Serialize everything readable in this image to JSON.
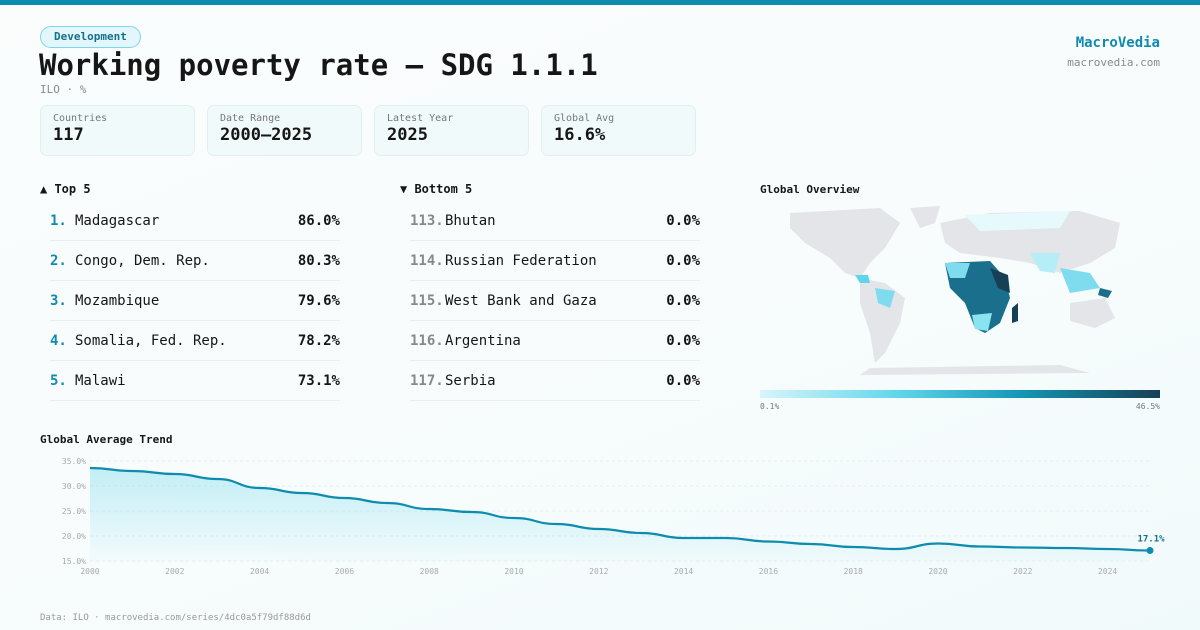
{
  "tag": "Development",
  "title": "Working poverty rate — SDG 1.1.1",
  "subtitle": "ILO · %",
  "brand": {
    "name": "MacroVedia",
    "url": "macrovedia.com"
  },
  "stats": [
    {
      "label": "Countries",
      "value": "117"
    },
    {
      "label": "Date Range",
      "value": "2000–2025"
    },
    {
      "label": "Latest Year",
      "value": "2025"
    },
    {
      "label": "Global Avg",
      "value": "16.6%"
    }
  ],
  "top": {
    "title": "▲ Top 5",
    "items": [
      {
        "rank": "1.",
        "name": "Madagascar",
        "value": "86.0%"
      },
      {
        "rank": "2.",
        "name": "Congo, Dem. Rep.",
        "value": "80.3%"
      },
      {
        "rank": "3.",
        "name": "Mozambique",
        "value": "79.6%"
      },
      {
        "rank": "4.",
        "name": "Somalia, Fed. Rep.",
        "value": "78.2%"
      },
      {
        "rank": "5.",
        "name": "Malawi",
        "value": "73.1%"
      }
    ]
  },
  "bottom": {
    "title": "▼ Bottom 5",
    "items": [
      {
        "rank": "113.",
        "name": "Bhutan",
        "value": "0.0%"
      },
      {
        "rank": "114.",
        "name": "Russian Federation",
        "value": "0.0%"
      },
      {
        "rank": "115.",
        "name": "West Bank and Gaza",
        "value": "0.0%"
      },
      {
        "rank": "116.",
        "name": "Argentina",
        "value": "0.0%"
      },
      {
        "rank": "117.",
        "name": "Serbia",
        "value": "0.0%"
      }
    ]
  },
  "map": {
    "title": "Global Overview",
    "legend_min": "0.1%",
    "legend_max": "46.5%",
    "colors": [
      "#d8f5fb",
      "#5fd5ea",
      "#1497b5",
      "#173f55"
    ]
  },
  "chart_data": {
    "type": "area",
    "title": "Global Average Trend",
    "x": [
      2000,
      2001,
      2002,
      2003,
      2004,
      2005,
      2006,
      2007,
      2008,
      2009,
      2010,
      2011,
      2012,
      2013,
      2014,
      2015,
      2016,
      2017,
      2018,
      2019,
      2020,
      2021,
      2022,
      2023,
      2024,
      2025
    ],
    "values": [
      33.6,
      33.0,
      32.4,
      31.4,
      29.6,
      28.6,
      27.6,
      26.6,
      25.4,
      24.8,
      23.6,
      22.4,
      21.4,
      20.6,
      19.6,
      19.6,
      18.9,
      18.4,
      17.8,
      17.4,
      18.5,
      17.9,
      17.7,
      17.6,
      17.4,
      17.1
    ],
    "ylim": [
      15,
      35
    ],
    "yticks": [
      "15.0%",
      "20.0%",
      "25.0%",
      "30.0%",
      "35.0%"
    ],
    "xticks": [
      "2000",
      "2002",
      "2004",
      "2006",
      "2008",
      "2010",
      "2012",
      "2014",
      "2016",
      "2018",
      "2020",
      "2022",
      "2024"
    ],
    "last_label": "17.1%",
    "color": "#0e8cae",
    "grid": true
  },
  "footer": "Data: ILO · macrovedia.com/series/4dc0a5f79df88d6d"
}
